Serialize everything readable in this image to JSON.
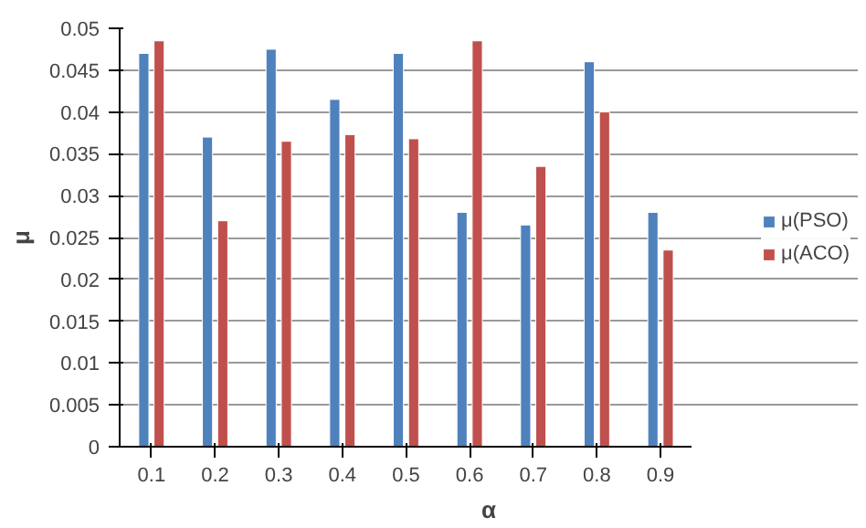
{
  "chart_data": {
    "type": "bar",
    "xlabel": "α",
    "ylabel": "μ",
    "categories": [
      "0.1",
      "0.2",
      "0.3",
      "0.4",
      "0.5",
      "0.6",
      "0.7",
      "0.8",
      "0.9"
    ],
    "series": [
      {
        "name": "μ(PSO)",
        "color": "#4f81bd",
        "values": [
          0.047,
          0.037,
          0.0475,
          0.0415,
          0.047,
          0.028,
          0.0265,
          0.046,
          0.028
        ]
      },
      {
        "name": "μ(ACO)",
        "color": "#c0504d",
        "values": [
          0.0485,
          0.027,
          0.0365,
          0.0373,
          0.0368,
          0.0485,
          0.0335,
          0.04,
          0.0235
        ]
      }
    ],
    "ylim": [
      0,
      0.05
    ],
    "yticks": [
      0,
      0.005,
      0.01,
      0.015,
      0.02,
      0.025,
      0.03,
      0.035,
      0.04,
      0.045,
      0.05
    ],
    "grid": "y",
    "legend": "right"
  }
}
